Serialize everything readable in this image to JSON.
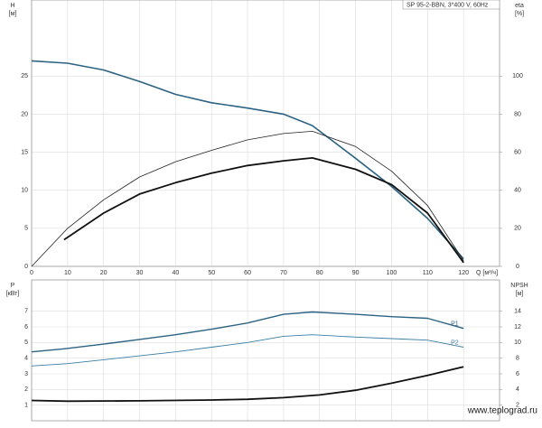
{
  "chart_data": [
    {
      "type": "line",
      "title": "SP 95-2-BBN, 3*400 V, 60Hz",
      "ylabel": [
        "H",
        "[м]"
      ],
      "y2label": [
        "eta",
        "[%]"
      ],
      "xlabel": "Q [м³/ч]",
      "xlim": [
        0,
        130
      ],
      "xticks": [
        0,
        10,
        20,
        30,
        40,
        50,
        60,
        70,
        80,
        90,
        100,
        110,
        120
      ],
      "ylim": [
        0,
        35
      ],
      "yticks": [
        0,
        5,
        10,
        15,
        20,
        25
      ],
      "y2lim": [
        0,
        140
      ],
      "y2ticks": [
        0,
        20,
        40,
        60,
        80,
        100
      ],
      "grid": true,
      "series": [
        {
          "color": "#2c6384",
          "x": [
            0,
            10,
            20,
            30,
            40,
            50,
            60,
            70,
            78,
            90,
            100,
            110,
            120
          ],
          "values": [
            27,
            26.7,
            25.8,
            24.3,
            22.6,
            21.5,
            20.8,
            20.0,
            18.5,
            14.2,
            10.5,
            6.3,
            1.0
          ]
        },
        {
          "color": "#222222",
          "axis": "y2",
          "x": [
            0,
            10,
            20,
            30,
            40,
            50,
            60,
            70,
            78,
            90,
            100,
            110,
            120
          ],
          "values": [
            0,
            20,
            35,
            47,
            55,
            61,
            66.5,
            69.8,
            71,
            63,
            50,
            32,
            3
          ]
        },
        {
          "color": "#111111",
          "axis": "y2",
          "x": [
            9,
            20,
            30,
            40,
            50,
            60,
            70,
            78,
            90,
            100,
            110,
            120
          ],
          "values": [
            14,
            28,
            38,
            44,
            49,
            53,
            55.5,
            57,
            51,
            43,
            28,
            2
          ]
        }
      ]
    },
    {
      "type": "line",
      "ylabel": [
        "P",
        "[кВт]"
      ],
      "y2label": [
        "NPSH",
        "[м]"
      ],
      "xlim": [
        0,
        130
      ],
      "ylim": [
        0,
        9
      ],
      "yticks": [
        1,
        2,
        3,
        4,
        5,
        6,
        7
      ],
      "y2lim": [
        0,
        18
      ],
      "y2ticks": [
        2,
        4,
        6,
        8,
        10,
        12,
        14
      ],
      "grid": true,
      "series": [
        {
          "name": "P1",
          "color": "#2c6384",
          "x": [
            0,
            9,
            20,
            30,
            40,
            50,
            60,
            70,
            78,
            90,
            100,
            110,
            120
          ],
          "values": [
            4.4,
            4.6,
            4.9,
            5.2,
            5.5,
            5.85,
            6.25,
            6.8,
            6.95,
            6.8,
            6.65,
            6.55,
            5.9
          ]
        },
        {
          "name": "P2",
          "color": "#3a7ea5",
          "x": [
            0,
            10,
            20,
            30,
            40,
            50,
            60,
            70,
            78,
            90,
            100,
            110,
            120
          ],
          "values": [
            3.5,
            3.65,
            3.9,
            4.15,
            4.4,
            4.7,
            5.0,
            5.4,
            5.5,
            5.35,
            5.25,
            5.15,
            4.7
          ]
        },
        {
          "color": "#111111",
          "axis": "y2",
          "x": [
            0,
            10,
            30,
            50,
            60,
            70,
            80,
            90,
            100,
            110,
            120
          ],
          "values": [
            2.6,
            2.5,
            2.55,
            2.65,
            2.75,
            2.95,
            3.3,
            3.9,
            4.8,
            5.8,
            6.9
          ]
        }
      ]
    }
  ],
  "watermark": "www.teplograd.ru"
}
